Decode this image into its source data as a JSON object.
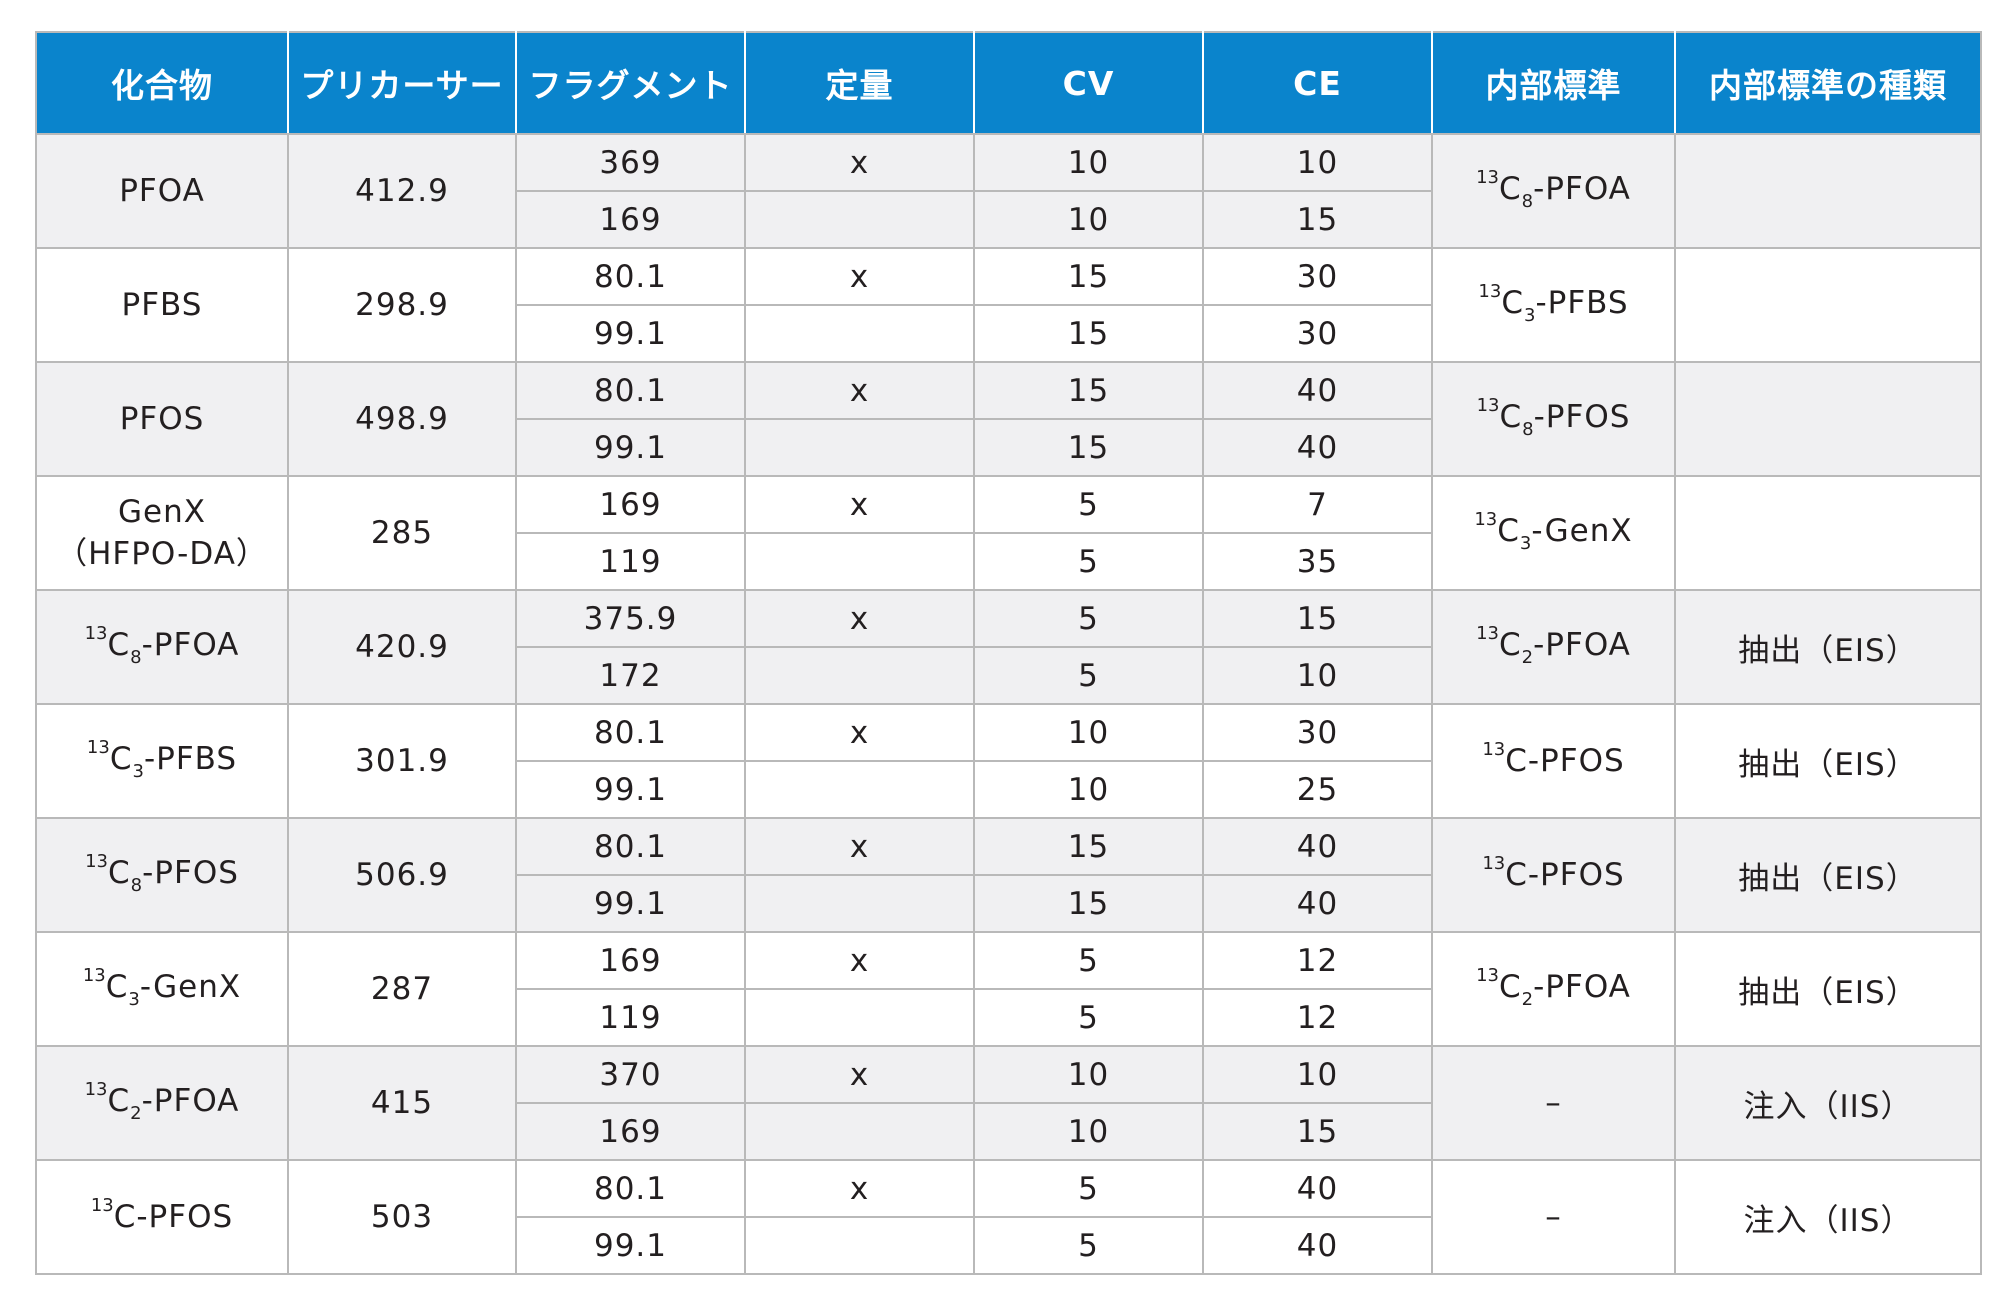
{
  "headers": [
    "化合物",
    "プリカーサー",
    "フラグメント",
    "定量",
    "CV",
    "CE",
    "内部標準",
    "内部標準の種類"
  ],
  "rows": [
    {
      "compound": {
        "iso": "",
        "base": "PFOA",
        "count": "",
        "suffix": ""
      },
      "precursor": "412.9",
      "fragments": [
        {
          "fragment": "369",
          "quant": "x",
          "cv": "10",
          "ce": "10"
        },
        {
          "fragment": "169",
          "quant": "",
          "cv": "10",
          "ce": "15"
        }
      ],
      "internal_standard": {
        "iso": "13",
        "base": "C",
        "count": "8",
        "suffix": "-PFOA"
      },
      "is_type": ""
    },
    {
      "compound": {
        "iso": "",
        "base": "PFBS",
        "count": "",
        "suffix": ""
      },
      "precursor": "298.9",
      "fragments": [
        {
          "fragment": "80.1",
          "quant": "x",
          "cv": "15",
          "ce": "30"
        },
        {
          "fragment": "99.1",
          "quant": "",
          "cv": "15",
          "ce": "30"
        }
      ],
      "internal_standard": {
        "iso": "13",
        "base": "C",
        "count": "3",
        "suffix": "-PFBS"
      },
      "is_type": ""
    },
    {
      "compound": {
        "iso": "",
        "base": "PFOS",
        "count": "",
        "suffix": ""
      },
      "precursor": "498.9",
      "fragments": [
        {
          "fragment": "80.1",
          "quant": "x",
          "cv": "15",
          "ce": "40"
        },
        {
          "fragment": "99.1",
          "quant": "",
          "cv": "15",
          "ce": "40"
        }
      ],
      "internal_standard": {
        "iso": "13",
        "base": "C",
        "count": "8",
        "suffix": "-PFOS"
      },
      "is_type": ""
    },
    {
      "compound": {
        "iso": "",
        "base": "GenX",
        "count": "",
        "suffix": "",
        "line2": "（HFPO-DA）"
      },
      "precursor": "285",
      "fragments": [
        {
          "fragment": "169",
          "quant": "x",
          "cv": "5",
          "ce": "7"
        },
        {
          "fragment": "119",
          "quant": "",
          "cv": "5",
          "ce": "35"
        }
      ],
      "internal_standard": {
        "iso": "13",
        "base": "C",
        "count": "3",
        "suffix": "-GenX"
      },
      "is_type": ""
    },
    {
      "compound": {
        "iso": "13",
        "base": "C",
        "count": "8",
        "suffix": "-PFOA"
      },
      "precursor": "420.9",
      "fragments": [
        {
          "fragment": "375.9",
          "quant": "x",
          "cv": "5",
          "ce": "15"
        },
        {
          "fragment": "172",
          "quant": "",
          "cv": "5",
          "ce": "10"
        }
      ],
      "internal_standard": {
        "iso": "13",
        "base": "C",
        "count": "2",
        "suffix": "-PFOA"
      },
      "is_type": "抽出（EIS）"
    },
    {
      "compound": {
        "iso": "13",
        "base": "C",
        "count": "3",
        "suffix": "-PFBS"
      },
      "precursor": "301.9",
      "fragments": [
        {
          "fragment": "80.1",
          "quant": "x",
          "cv": "10",
          "ce": "30"
        },
        {
          "fragment": "99.1",
          "quant": "",
          "cv": "10",
          "ce": "25"
        }
      ],
      "internal_standard": {
        "iso": "13",
        "base": "C",
        "count": "",
        "suffix": "-PFOS"
      },
      "is_type": "抽出（EIS）"
    },
    {
      "compound": {
        "iso": "13",
        "base": "C",
        "count": "8",
        "suffix": "-PFOS"
      },
      "precursor": "506.9",
      "fragments": [
        {
          "fragment": "80.1",
          "quant": "x",
          "cv": "15",
          "ce": "40"
        },
        {
          "fragment": "99.1",
          "quant": "",
          "cv": "15",
          "ce": "40"
        }
      ],
      "internal_standard": {
        "iso": "13",
        "base": "C",
        "count": "",
        "suffix": "-PFOS"
      },
      "is_type": "抽出（EIS）"
    },
    {
      "compound": {
        "iso": "13",
        "base": "C",
        "count": "3",
        "suffix": "-GenX"
      },
      "precursor": "287",
      "fragments": [
        {
          "fragment": "169",
          "quant": "x",
          "cv": "5",
          "ce": "12"
        },
        {
          "fragment": "119",
          "quant": "",
          "cv": "5",
          "ce": "12"
        }
      ],
      "internal_standard": {
        "iso": "13",
        "base": "C",
        "count": "2",
        "suffix": "-PFOA"
      },
      "is_type": "抽出（EIS）"
    },
    {
      "compound": {
        "iso": "13",
        "base": "C",
        "count": "2",
        "suffix": "-PFOA"
      },
      "precursor": "415",
      "fragments": [
        {
          "fragment": "370",
          "quant": "x",
          "cv": "10",
          "ce": "10"
        },
        {
          "fragment": "169",
          "quant": "",
          "cv": "10",
          "ce": "15"
        }
      ],
      "internal_standard": {
        "iso": "",
        "base": "–",
        "count": "",
        "suffix": ""
      },
      "is_type": "注入（IIS）"
    },
    {
      "compound": {
        "iso": "13",
        "base": "C",
        "count": "",
        "suffix": "-PFOS"
      },
      "precursor": "503",
      "fragments": [
        {
          "fragment": "80.1",
          "quant": "x",
          "cv": "5",
          "ce": "40"
        },
        {
          "fragment": "99.1",
          "quant": "",
          "cv": "5",
          "ce": "40"
        }
      ],
      "internal_standard": {
        "iso": "",
        "base": "–",
        "count": "",
        "suffix": ""
      },
      "is_type": "注入（IIS）"
    }
  ]
}
